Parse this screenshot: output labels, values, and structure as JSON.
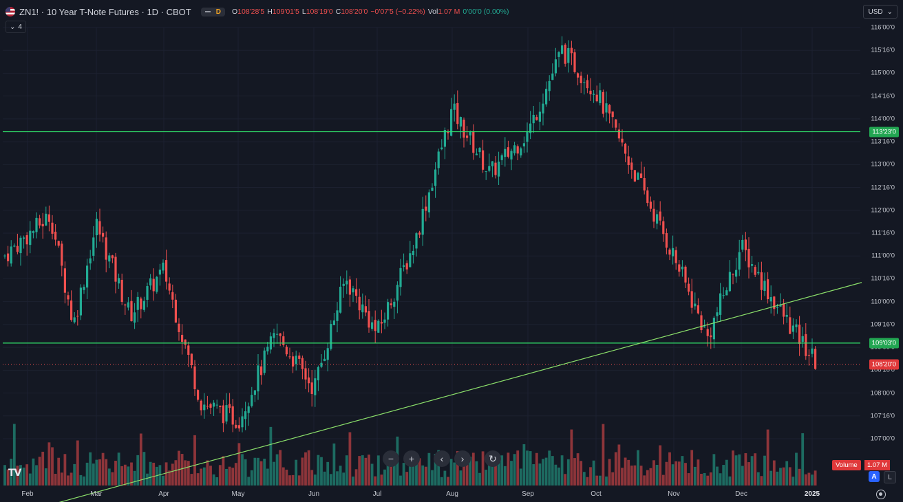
{
  "header": {
    "symbol_title": "ZN1! · 10 Year T-Note Futures · 1D · CBOT",
    "pill_badge": "D",
    "ohlc": [
      {
        "label": "O",
        "value": "108'28'5",
        "tone": "red"
      },
      {
        "label": "H",
        "value": "109'01'5",
        "tone": "red"
      },
      {
        "label": "L",
        "value": "108'19'0",
        "tone": "red"
      },
      {
        "label": "C",
        "value": "108'20'0",
        "tone": "red"
      },
      {
        "label": "",
        "value": "−0'07'5 (−0.22%)",
        "tone": "red"
      },
      {
        "label": "Vol",
        "value": "1.07 M",
        "tone": "red"
      },
      {
        "label": "",
        "value": "0'00'0 (0.00%)",
        "tone": "green"
      }
    ],
    "collapse_count": "4",
    "currency": "USD"
  },
  "price_axis": {
    "labels": [
      "116'00'0",
      "115'16'0",
      "115'00'0",
      "114'16'0",
      "114'00'0",
      "113'16'0",
      "113'00'0",
      "112'16'0",
      "112'00'0",
      "111'16'0",
      "111'00'0",
      "110'16'0",
      "110'00'0",
      "109'16'0",
      "109'00'0",
      "108'16'0",
      "108'00'0",
      "107'16'0",
      "107'00'0"
    ],
    "badges": [
      {
        "text": "113'23'0",
        "color": "green",
        "price": 113.71875
      },
      {
        "text": "109'03'0",
        "color": "green",
        "price": 109.09375
      },
      {
        "text": "108'20'0",
        "color": "red",
        "price": 108.625
      }
    ],
    "volume_label": "Volume",
    "volume_value": "1.07 M"
  },
  "time_axis": {
    "months": [
      {
        "label": "Feb",
        "bold": false
      },
      {
        "label": "Mar",
        "bold": false
      },
      {
        "label": "Apr",
        "bold": false
      },
      {
        "label": "May",
        "bold": false
      },
      {
        "label": "Jun",
        "bold": false
      },
      {
        "label": "Jul",
        "bold": false
      },
      {
        "label": "Aug",
        "bold": false
      },
      {
        "label": "Sep",
        "bold": false
      },
      {
        "label": "Oct",
        "bold": false
      },
      {
        "label": "Nov",
        "bold": false
      },
      {
        "label": "Dec",
        "bold": false
      },
      {
        "label": "2025",
        "bold": true
      }
    ]
  },
  "toolbar": {
    "zoom_out": "−",
    "zoom_in": "+",
    "scroll_left": "‹",
    "scroll_right": "›",
    "reset": "↻",
    "auto_scale": "A",
    "log_scale": "L",
    "logo": "TV"
  },
  "colors": {
    "background": "#141823",
    "up": "#22ab94",
    "down": "#f0504f",
    "hline": "#31e26b",
    "trendline": "#8bdf6a"
  },
  "chart_data": {
    "type": "candlestick",
    "symbol": "ZN1!",
    "timeframe": "1D",
    "y_range": [
      107.0,
      116.0
    ],
    "key_points": [
      {
        "month": "Feb",
        "close": 111.0
      },
      {
        "month": "Feb",
        "close": 111.9
      },
      {
        "month": "Feb",
        "close": 109.5
      },
      {
        "month": "Mar",
        "close": 111.7
      },
      {
        "month": "Mar",
        "close": 109.7
      },
      {
        "month": "Apr",
        "close": 110.7
      },
      {
        "month": "Apr",
        "close": 107.8
      },
      {
        "month": "May",
        "close": 107.4
      },
      {
        "month": "May",
        "close": 109.3
      },
      {
        "month": "Jun",
        "close": 108.1
      },
      {
        "month": "Jun",
        "close": 110.5
      },
      {
        "month": "Jul",
        "close": 109.3
      },
      {
        "month": "Jul",
        "close": 111.3
      },
      {
        "month": "Aug",
        "close": 114.2
      },
      {
        "month": "Aug",
        "close": 112.8
      },
      {
        "month": "Sep",
        "close": 113.7
      },
      {
        "month": "Sep",
        "close": 115.5
      },
      {
        "month": "Oct",
        "close": 114.6
      },
      {
        "month": "Oct",
        "close": 112.8
      },
      {
        "month": "Nov",
        "close": 111.0
      },
      {
        "month": "Nov",
        "close": 109.2
      },
      {
        "month": "Dec",
        "close": 111.2
      },
      {
        "month": "Dec",
        "close": 109.9
      },
      {
        "month": "2025",
        "close": 108.625
      }
    ],
    "horizontal_lines": [
      {
        "price": 113.71875,
        "label": "113'23'0"
      },
      {
        "price": 109.09375,
        "label": "109'03'0"
      }
    ],
    "trendline": {
      "from": {
        "month": "Feb",
        "price": 105.5
      },
      "to": {
        "month": "2025",
        "price": 110.42
      }
    },
    "last_price": {
      "price": 108.625,
      "label": "108'20'0"
    },
    "volume": {
      "last": "1.07 M"
    }
  }
}
